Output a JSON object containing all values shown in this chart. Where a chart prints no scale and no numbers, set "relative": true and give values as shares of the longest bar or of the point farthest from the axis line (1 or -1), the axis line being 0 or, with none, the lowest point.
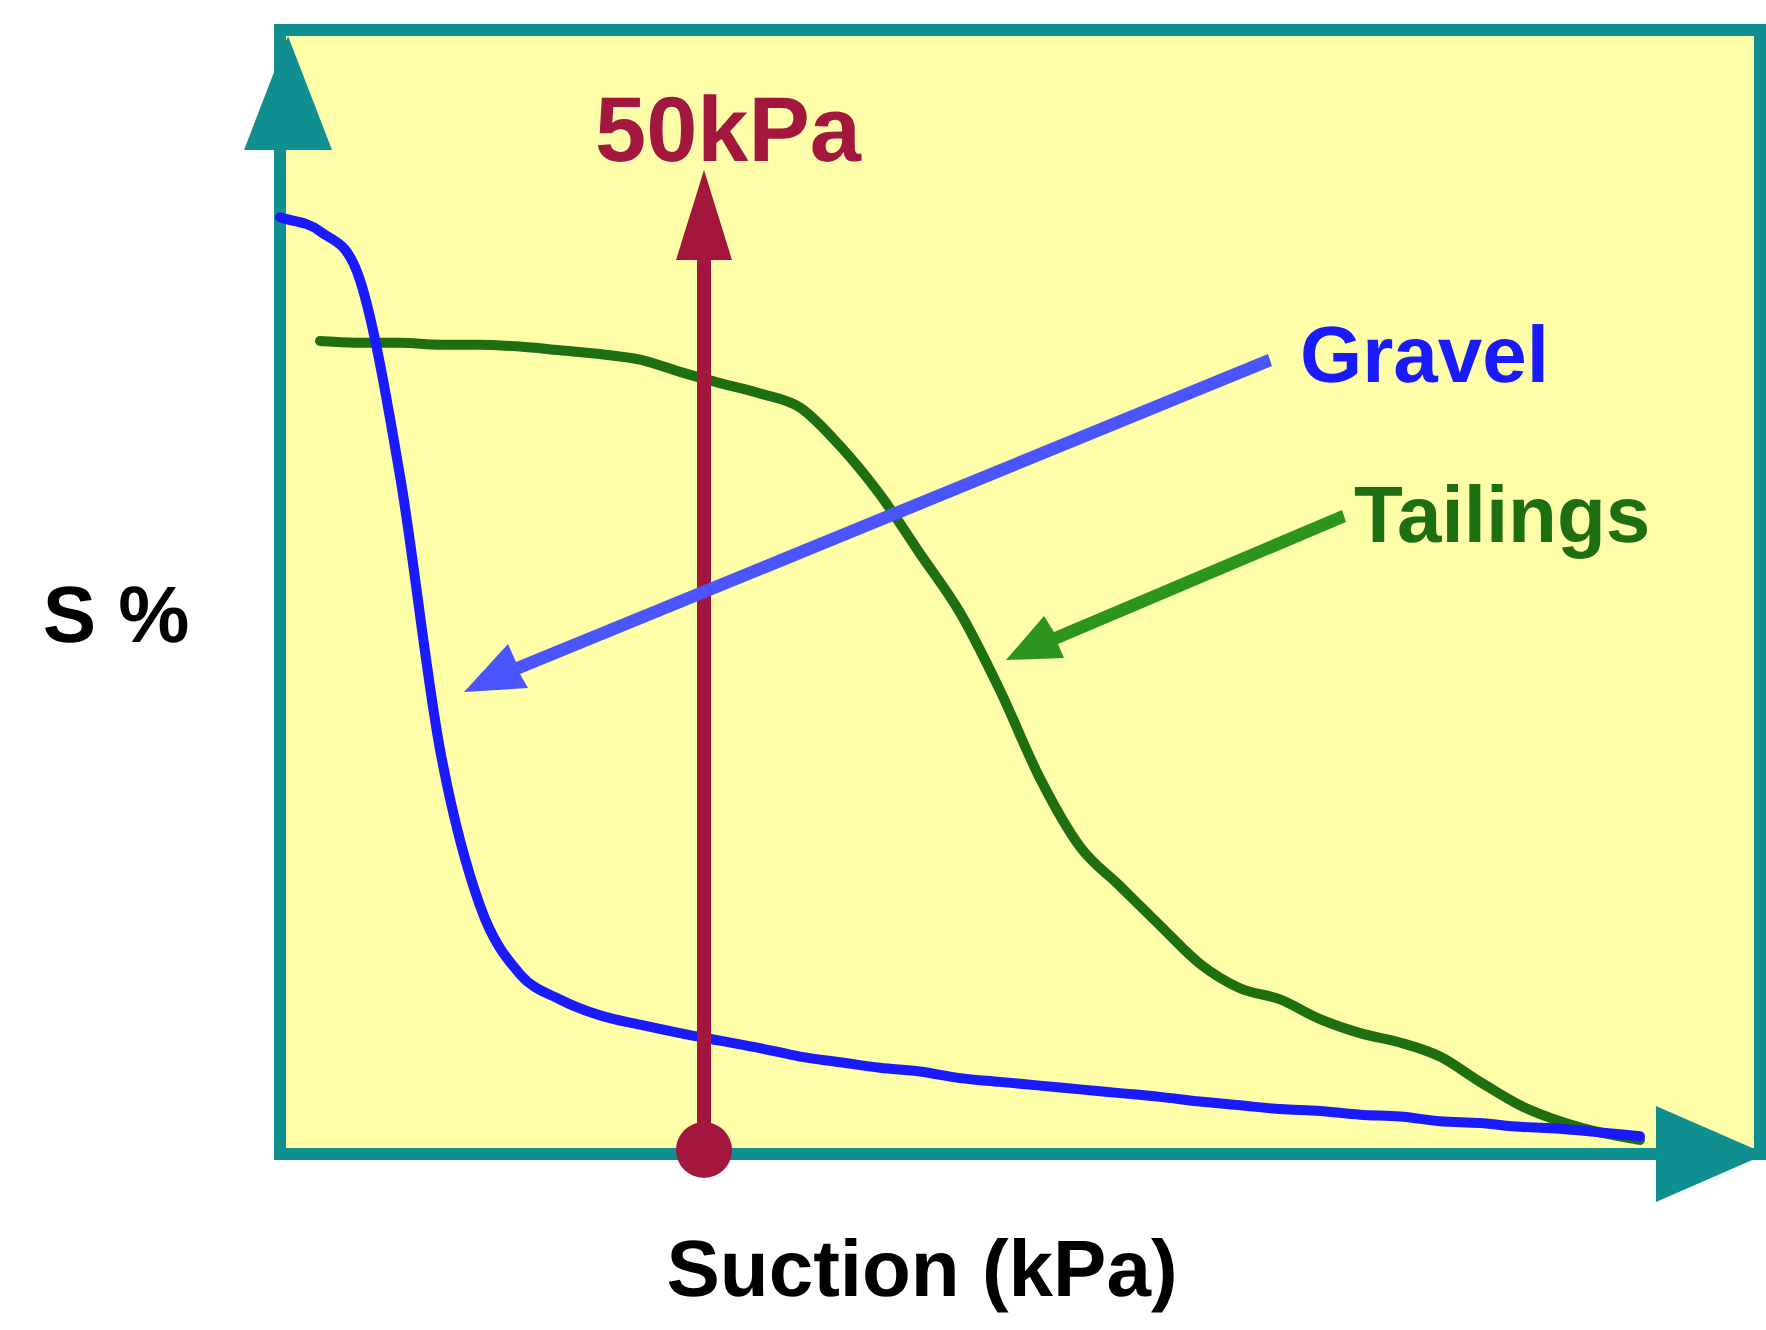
{
  "chart_data": {
    "type": "line",
    "relative": true,
    "xlabel": "Suction (kPa)",
    "ylabel": "S %",
    "legend": false,
    "marker": "none",
    "line_style": "solid",
    "annotations": [
      "50kPa"
    ],
    "categories": [
      null,
      null,
      null,
      null,
      null,
      null,
      null,
      null,
      null,
      null,
      null,
      null,
      null,
      null,
      null,
      null,
      null,
      null,
      null,
      null,
      null,
      null,
      null,
      null,
      null,
      null,
      null,
      null,
      null,
      null,
      null,
      null,
      null,
      null,
      null,
      null,
      null,
      null
    ],
    "series": [
      {
        "name": "Gravel",
        "color": "#1a1aff",
        "values": [
          1,
          0.985,
          0.933,
          0.724,
          0.432,
          0.265,
          0.192,
          0.165,
          0.148,
          0.138,
          0.129,
          0.121,
          0.113,
          0.104,
          0.098,
          0.092,
          0.088,
          0.081,
          0.077,
          0.073,
          0.069,
          0.065,
          0.061,
          0.056,
          0.052,
          0.048,
          0.046,
          0.042,
          0.04,
          0.035,
          0.033,
          0.029,
          0.027,
          0.023,
          0.019,
          null,
          null,
          null
        ]
      },
      {
        "name": "Tailings",
        "color": "#1e6e12",
        "values": [
          null,
          0.868,
          0.866,
          0.866,
          0.864,
          0.864,
          0.862,
          0.858,
          0.854,
          0.848,
          0.835,
          0.823,
          0.812,
          0.797,
          0.756,
          0.704,
          0.641,
          0.578,
          0.495,
          0.401,
          0.328,
          0.286,
          0.244,
          0.203,
          0.177,
          0.165,
          0.144,
          0.129,
          0.119,
          0.104,
          0.077,
          0.052,
          0.035,
          0.023,
          0.015,
          null,
          null,
          null
        ]
      }
    ]
  }
}
